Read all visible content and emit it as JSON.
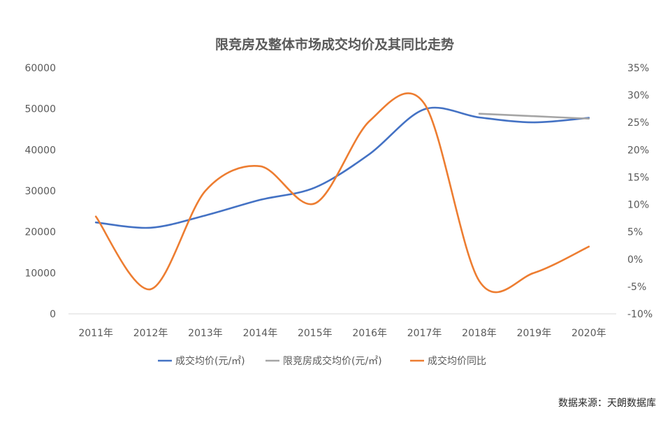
{
  "chart_data": {
    "type": "line",
    "title": "限竞房及整体市场成交均价及其同比走势",
    "categories": [
      "2011年",
      "2012年",
      "2013年",
      "2014年",
      "2015年",
      "2016年",
      "2017年",
      "2018年",
      "2019年",
      "2020年"
    ],
    "y_left": {
      "ticks": [
        "0",
        "10000",
        "20000",
        "30000",
        "40000",
        "50000",
        "60000"
      ],
      "range": [
        0,
        60000
      ]
    },
    "y_right": {
      "ticks": [
        "-10%",
        "-5%",
        "0%",
        "5%",
        "10%",
        "15%",
        "20%",
        "25%",
        "30%",
        "35%"
      ],
      "range": [
        -10,
        35
      ]
    },
    "series": [
      {
        "name": "成交均价(元/㎡)",
        "axis": "left",
        "color": "#4472C4",
        "values": [
          22300,
          21000,
          24000,
          27800,
          30800,
          39000,
          49900,
          47900,
          46700,
          47800
        ]
      },
      {
        "name": "限竞房成交均价(元/㎡)",
        "axis": "left",
        "color": "#A5A5A5",
        "values": [
          null,
          null,
          null,
          null,
          null,
          null,
          null,
          48800,
          48200,
          47600
        ]
      },
      {
        "name": "成交均价同比",
        "axis": "right",
        "color": "#ED7D31",
        "values": [
          7.8,
          -5.5,
          12.5,
          17.0,
          10.2,
          25.3,
          28.4,
          -4.0,
          -2.5,
          2.3
        ]
      }
    ],
    "legend_position": "bottom"
  },
  "source_note": "数据来源：天朗数据库"
}
